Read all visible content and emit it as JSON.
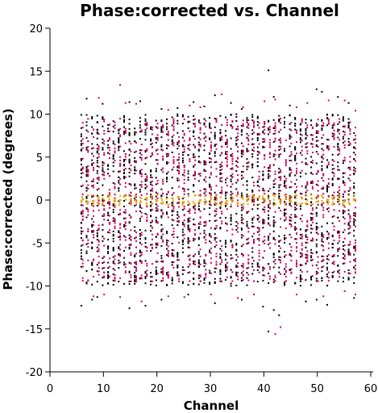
{
  "chart_data": {
    "type": "scatter",
    "title": "Phase:corrected vs. Channel",
    "xlabel": "Channel",
    "ylabel": "Phase:corrected (degrees)",
    "xlim": [
      0,
      60
    ],
    "ylim": [
      -20,
      20
    ],
    "xticks": [
      0,
      10,
      20,
      30,
      40,
      50,
      60
    ],
    "yticks": [
      -20,
      -15,
      -10,
      -5,
      0,
      5,
      10,
      15,
      20
    ],
    "grid": false,
    "channels": {
      "start": 6,
      "end": 57,
      "step": 1
    },
    "series": [
      {
        "color": "#000000",
        "typical_range": [
          -10,
          10
        ],
        "tails_hi": {
          "7": 11.8,
          "10": 11.2,
          "15": 11.4,
          "17": 11.5,
          "21": 10.6,
          "24": 10.7,
          "27": 11.4,
          "29": 10.9,
          "31": 12.2,
          "34": 11.3,
          "36": 10.6,
          "41": 15.1,
          "42": 12.0,
          "45": 11.0,
          "50": 12.9,
          "51": 12.6,
          "54": 12.0,
          "56": 11.3
        },
        "tails_lo": {
          "6": -12.3,
          "8": -11.6,
          "9": -11.3,
          "15": -12.6,
          "18": -12.3,
          "21": -11.6,
          "26": -11.0,
          "31": -12.0,
          "36": -11.6,
          "40": -12.4,
          "41": -15.3,
          "42": -12.8,
          "43": -13.4,
          "48": -11.8,
          "50": -11.6,
          "52": -12.2,
          "57": -11.4
        }
      },
      {
        "color": "#cc0066",
        "typical_range": [
          -9.5,
          9.5
        ],
        "tails_hi": {
          "9": 11.9,
          "13": 13.4,
          "14": 11.3,
          "16": 11.2,
          "22": 10.5,
          "26": 11.0,
          "28": 10.8,
          "32": 12.3,
          "36": 10.8,
          "40": 11.5,
          "42": 11.7,
          "46": 10.8,
          "48": 11.3,
          "52": 11.6,
          "55": 11.6,
          "57": 10.4
        },
        "tails_lo": {
          "8": -11.2,
          "10": -11.0,
          "13": -11.3,
          "17": -11.8,
          "22": -11.2,
          "25": -11.3,
          "30": -11.0,
          "35": -11.4,
          "38": -11.0,
          "42": -15.6,
          "43": -14.8,
          "46": -11.0,
          "51": -11.2,
          "55": -10.6,
          "57": -11.0
        }
      },
      {
        "color": "#e6a000",
        "typical_range": [
          -0.6,
          0.6
        ]
      }
    ]
  }
}
